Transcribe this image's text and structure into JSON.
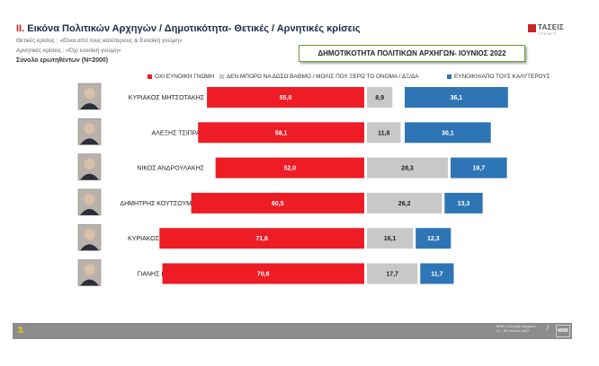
{
  "header": {
    "number": "ΙΙ.",
    "title": " Εικόνα Πολιτικών Αρχηγών  / Δημοτικότητα- Θετικές / Αρνητικές κρίσεις",
    "note_positive": "Θετικές κρίσεις : «Είναι από τους καλύτερους & Ευνοϊκή γνώμη»",
    "note_negative": "Αρνητικές κρίσεις : «Όχι ευνοϊκή γνώμη»",
    "sample": "Σύνολο ερωτηθέντων (Ν=2000)",
    "logo_text": "ΤΑΣΕΙΣ",
    "logo_sub": "ΤΡΕΝΤΣ"
  },
  "chart_box_title": "ΔΗΜΟΤΙΚΟΤΗΤΑ ΠΟΛΙΤΙΚΩΝ ΑΡΧΗΓΩΝ- ΙΟΥΝΙΟΣ 2022",
  "chart_data": {
    "type": "bar",
    "orientation": "horizontal",
    "stacked": true,
    "categories": [
      "ΚΥΡΙΑΚΟΣ ΜΗΤΣΟΤΑΚΗΣ",
      "ΑΛΕΞΗΣ ΤΣΙΠΡΑΣ",
      "ΝΙΚΟΣ ΑΝΔΡΟΥΛΑΚΗΣ",
      "ΔΗΜΗΤΡΗΣ ΚΟΥΤΣΟΥΜΠΑΣ",
      "ΚΥΡΙΑΚΟΣ ΒΕΛΟΠΟΥΛΟΣ",
      "ΓΙΑΝΗΣ ΒΑΡΟΥΦΑΚΗΣ"
    ],
    "series": [
      {
        "name": "ΟΧΙ ΕΥΝΟΙΚΗ ΓΝΩΜΗ",
        "color": "#ee1c25",
        "values": [
          55.0,
          58.1,
          52.0,
          60.5,
          71.6,
          70.6
        ]
      },
      {
        "name": "ΔΕΝ ΜΠΟΡΩ ΝΑ ΔΩΣΩ ΒΑΘΜΟ / ΜΟΛΙΣ ΠΟΥ ΞΕΡΩ ΤΟ ΟΝΟΜΑ / ΔΞ/ΔΑ",
        "color": "#c8c8c8",
        "values": [
          8.9,
          11.8,
          28.3,
          26.2,
          16.1,
          17.7
        ]
      },
      {
        "name": "ΕΥΝΟΙΚΗ/ΑΠΟ ΤΟΥΣ ΚΑΛΥΤΕΡΟΥΣ",
        "color": "#2e75b6",
        "values": [
          36.1,
          30.1,
          19.7,
          13.3,
          12.3,
          11.7
        ]
      }
    ],
    "value_labels": [
      [
        "55,0",
        "8,9",
        "36,1"
      ],
      [
        "58,1",
        "11,8",
        "30,1"
      ],
      [
        "52,0",
        "28,3",
        "19,7"
      ],
      [
        "60,5",
        "26,2",
        "13,3"
      ],
      [
        "71,6",
        "16,1",
        "12,3"
      ],
      [
        "70,6",
        "17,7",
        "11,7"
      ]
    ],
    "legend_position": "top",
    "grid": false
  },
  "footer": {
    "slide_number": "3.",
    "source_line1": "MRB: Συλλογή στοιχείων",
    "source_line2": "21 - 30 Ιουνίου 2022",
    "page": "7",
    "logo": "MRB"
  }
}
